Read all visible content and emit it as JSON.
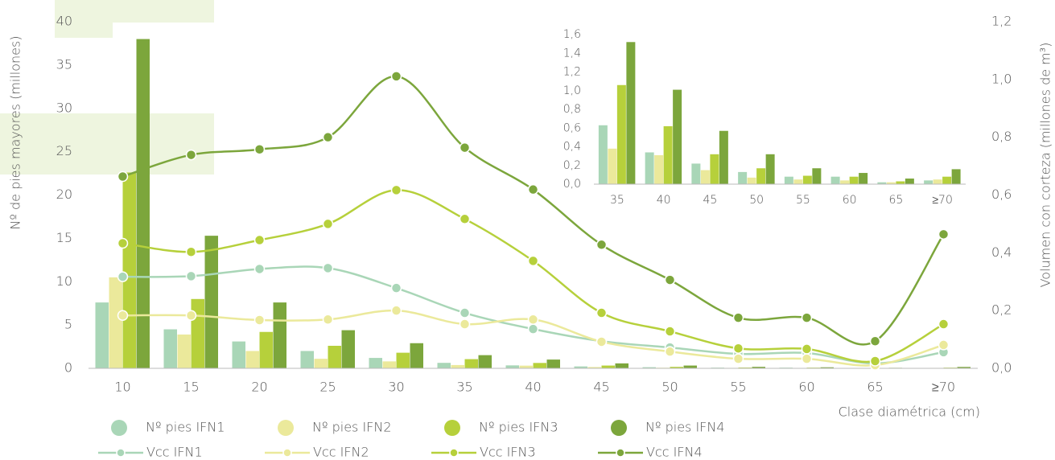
{
  "chart_data": [
    {
      "type": "bar",
      "y_label": "Nº de pies mayores (millones)",
      "y2_label": "Volumen con corteza (millones de m³)",
      "x_label": "Clase diamétrica (cm)",
      "categories": [
        "10",
        "15",
        "20",
        "25",
        "30",
        "35",
        "40",
        "45",
        "50",
        "55",
        "60",
        "65",
        "≥70"
      ],
      "ylim": [
        0,
        40
      ],
      "yticks": [
        0,
        5,
        10,
        15,
        20,
        25,
        30,
        35,
        40
      ],
      "y2lim": [
        0,
        1.2
      ],
      "y2ticks": [
        {
          "value": 0,
          "label": "0,0"
        },
        {
          "value": 0.2,
          "label": "0,2"
        },
        {
          "value": 0.4,
          "label": "0,4"
        },
        {
          "value": 0.6,
          "label": "0,6"
        },
        {
          "value": 0.8,
          "label": "0,8"
        },
        {
          "value": 1.0,
          "label": "1,0"
        },
        {
          "value": 1.2,
          "label": "1,2"
        }
      ],
      "series": [
        {
          "name": "Nº pies IFN1",
          "type": "bar",
          "color": "#a9d6b7",
          "values": [
            7.6,
            4.5,
            3.1,
            2.0,
            1.2,
            0.63,
            0.34,
            0.22,
            0.13,
            0.08,
            0.08,
            0.02,
            0.04
          ]
        },
        {
          "name": "Nº pies IFN2",
          "type": "bar",
          "color": "#ebe99b",
          "values": [
            10.5,
            3.9,
            2.0,
            1.1,
            0.8,
            0.38,
            0.31,
            0.15,
            0.07,
            0.05,
            0.04,
            0.02,
            0.05
          ]
        },
        {
          "name": "Nº pies IFN3",
          "type": "bar",
          "color": "#b6d03b",
          "values": [
            22.6,
            8.0,
            4.2,
            2.6,
            1.8,
            1.06,
            0.62,
            0.32,
            0.17,
            0.09,
            0.08,
            0.03,
            0.08
          ]
        },
        {
          "name": "Nº pies IFN4",
          "type": "bar",
          "color": "#7ca63c",
          "values": [
            38.0,
            15.3,
            7.6,
            4.4,
            2.9,
            1.52,
            1.01,
            0.57,
            0.32,
            0.17,
            0.12,
            0.06,
            0.16
          ]
        },
        {
          "name": "Vcc IFN1",
          "type": "line",
          "axis": "y2",
          "color": "#a9d6b7",
          "values": [
            0.317,
            0.319,
            0.344,
            0.347,
            0.278,
            0.192,
            0.136,
            0.094,
            0.072,
            0.05,
            0.053,
            0.017,
            0.056
          ]
        },
        {
          "name": "Vcc IFN2",
          "type": "line",
          "axis": "y2",
          "color": "#ebe99b",
          "values": [
            0.183,
            0.183,
            0.167,
            0.169,
            0.2,
            0.153,
            0.169,
            0.092,
            0.058,
            0.033,
            0.033,
            0.011,
            0.081
          ]
        },
        {
          "name": "Vcc IFN3",
          "type": "line",
          "axis": "y2",
          "color": "#b6d03b",
          "values": [
            0.433,
            0.403,
            0.444,
            0.5,
            0.617,
            0.517,
            0.372,
            0.192,
            0.128,
            0.069,
            0.067,
            0.025,
            0.153
          ]
        },
        {
          "name": "Vcc IFN4",
          "type": "line",
          "axis": "y2",
          "color": "#7ca63c",
          "values": [
            0.664,
            0.739,
            0.758,
            0.8,
            1.011,
            0.764,
            0.619,
            0.428,
            0.306,
            0.175,
            0.175,
            0.094,
            0.464
          ]
        }
      ]
    },
    {
      "type": "bar",
      "categories": [
        "35",
        "40",
        "45",
        "50",
        "55",
        "60",
        "65",
        "≥70"
      ],
      "ylim": [
        0,
        1.6
      ],
      "yticks": [
        {
          "value": 0,
          "label": "0,0"
        },
        {
          "value": 0.2,
          "label": "0,2"
        },
        {
          "value": 0.4,
          "label": "0,4"
        },
        {
          "value": 0.6,
          "label": "0,6"
        },
        {
          "value": 0.8,
          "label": "0,8"
        },
        {
          "value": 1.0,
          "label": "1,0"
        },
        {
          "value": 1.2,
          "label": "1,2"
        },
        {
          "value": 1.4,
          "label": "1,4"
        },
        {
          "value": 1.6,
          "label": "1,6"
        }
      ],
      "series": [
        {
          "type": "bar",
          "color": "#a9d6b7",
          "values": [
            0.63,
            0.34,
            0.22,
            0.13,
            0.08,
            0.08,
            0.02,
            0.04
          ]
        },
        {
          "type": "bar",
          "color": "#ebe99b",
          "values": [
            0.38,
            0.31,
            0.15,
            0.07,
            0.05,
            0.04,
            0.02,
            0.05
          ]
        },
        {
          "type": "bar",
          "color": "#b6d03b",
          "values": [
            1.06,
            0.62,
            0.32,
            0.17,
            0.09,
            0.08,
            0.03,
            0.08
          ]
        },
        {
          "type": "bar",
          "color": "#7ca63c",
          "values": [
            1.52,
            1.01,
            0.57,
            0.32,
            0.17,
            0.12,
            0.06,
            0.16
          ]
        }
      ]
    }
  ]
}
